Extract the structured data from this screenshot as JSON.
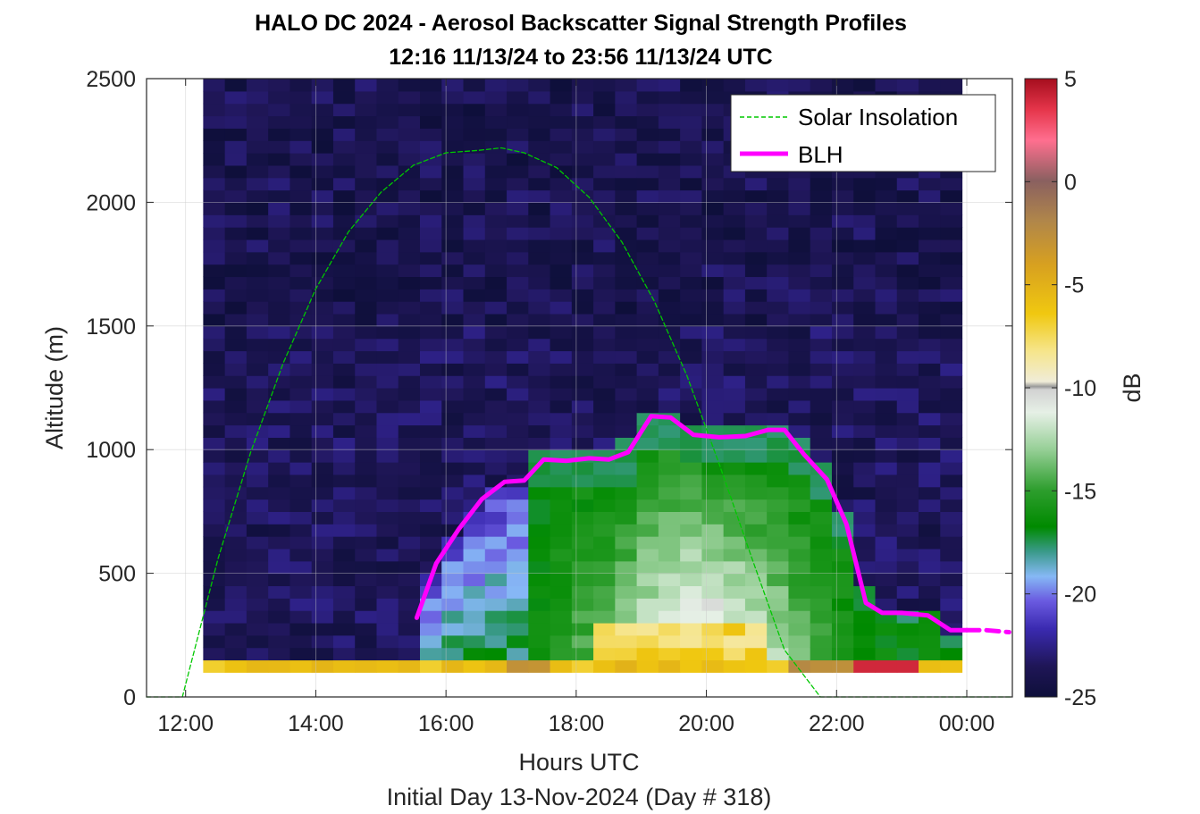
{
  "chart_data": {
    "type": "heatmap",
    "title": "HALO DC 2024 - Aerosol Backscatter Signal Strength Profiles",
    "subtitle": "12:16 11/13/24 to 23:56 11/13/24  UTC",
    "xlabel": "Hours UTC",
    "footnote": "Initial Day 13-Nov-2024 (Day # 318)",
    "ylabel": "Altitude (m)",
    "colorbar_label": "dB",
    "x_range_hours": [
      11.4,
      24.7
    ],
    "ylim": [
      0,
      2500
    ],
    "clim": [
      -25,
      5
    ],
    "x_ticks": [
      {
        "value": 12,
        "label": "12:00"
      },
      {
        "value": 14,
        "label": "14:00"
      },
      {
        "value": 16,
        "label": "16:00"
      },
      {
        "value": 18,
        "label": "18:00"
      },
      {
        "value": 20,
        "label": "20:00"
      },
      {
        "value": 22,
        "label": "22:00"
      },
      {
        "value": 24,
        "label": "00:00"
      }
    ],
    "y_ticks": [
      {
        "value": 0,
        "label": "0"
      },
      {
        "value": 500,
        "label": "500"
      },
      {
        "value": 1000,
        "label": "1000"
      },
      {
        "value": 1500,
        "label": "1500"
      },
      {
        "value": 2000,
        "label": "2000"
      },
      {
        "value": 2500,
        "label": "2500"
      }
    ],
    "colorbar_ticks": [
      {
        "value": 5,
        "label": "5"
      },
      {
        "value": 0,
        "label": "0"
      },
      {
        "value": -5,
        "label": "-5"
      },
      {
        "value": -10,
        "label": "-10"
      },
      {
        "value": -15,
        "label": "-15"
      },
      {
        "value": -20,
        "label": "-20"
      },
      {
        "value": -25,
        "label": "-25"
      }
    ],
    "grid": true,
    "legend_position": "top-right",
    "heatmap": {
      "x_start_hours": 12.27,
      "bin_hours": 0.333,
      "n_columns": 35,
      "y_bin_m": 50,
      "n_rows": 50,
      "near_surface_layer_m": [
        100,
        150
      ]
    },
    "series": [
      {
        "name": "Solar Insolation",
        "style": "dashed",
        "color": "#00c800",
        "x": [
          11.4,
          11.95,
          12.5,
          13.0,
          13.5,
          14.0,
          14.5,
          15.0,
          15.5,
          16.0,
          16.5,
          16.85,
          17.2,
          17.7,
          18.2,
          18.7,
          19.2,
          19.7,
          20.2,
          20.7,
          21.2,
          21.75,
          22.2,
          24.7
        ],
        "y": [
          0,
          0,
          560,
          990,
          1350,
          1650,
          1880,
          2040,
          2150,
          2200,
          2210,
          2220,
          2200,
          2140,
          2020,
          1840,
          1600,
          1300,
          940,
          560,
          190,
          0,
          0,
          0
        ]
      },
      {
        "name": "BLH",
        "style": "solid",
        "color": "#ff00ff",
        "x": [
          15.55,
          15.85,
          16.2,
          16.55,
          16.9,
          17.2,
          17.5,
          17.85,
          18.2,
          18.5,
          18.8,
          19.15,
          19.45,
          19.8,
          20.2,
          20.6,
          20.95,
          21.2,
          21.5,
          21.85,
          22.15,
          22.45,
          22.7,
          23.0,
          23.4,
          23.75,
          24.0
        ],
        "y": [
          320,
          540,
          680,
          800,
          870,
          875,
          960,
          955,
          965,
          960,
          990,
          1135,
          1130,
          1060,
          1050,
          1055,
          1080,
          1080,
          980,
          880,
          700,
          380,
          340,
          340,
          330,
          270,
          270
        ]
      },
      {
        "name": "",
        "style": "dashed",
        "color": "#ff00ff",
        "x": [
          24.0,
          24.3,
          24.65
        ],
        "y": [
          270,
          270,
          262
        ]
      }
    ]
  }
}
